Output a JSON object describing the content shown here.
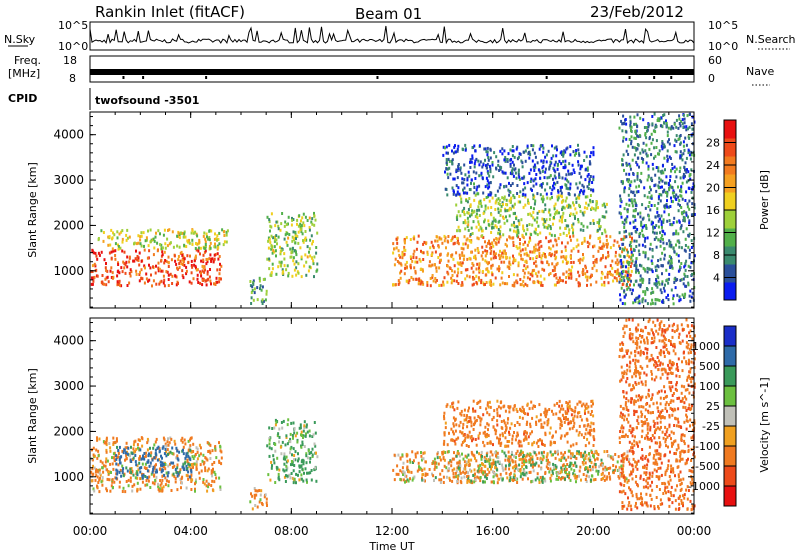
{
  "header": {
    "station": "Rankin Inlet (fitACF)",
    "beam": "Beam 01",
    "date": "23/Feb/2012"
  },
  "top_panels": {
    "nsky_label": "N.Sky",
    "nsearch_label": "N.Search",
    "nsky_ticks": [
      "10^5",
      "10^0"
    ],
    "nsearch_ticks": [
      "10^5",
      "10^0"
    ],
    "freq_label_1": "Freq.",
    "freq_label_2": "[MHz]",
    "freq_ticks": [
      "18",
      "8"
    ],
    "nave_label": "Nave",
    "nave_ticks": [
      "60",
      "0"
    ],
    "cpid_label": "CPID",
    "cpid_value": "twofsound -3501"
  },
  "chart_data": [
    {
      "type": "heatmap",
      "panel": "power",
      "ylabel": "Slant Range [km]",
      "xlabel": "",
      "ylim": [
        180,
        4500
      ],
      "yticks": [
        1000,
        2000,
        3000,
        4000
      ],
      "x_ticks": [
        "00:00",
        "04:00",
        "08:00",
        "12:00",
        "16:00",
        "20:00",
        "00:00"
      ],
      "colorbar": {
        "label": "Power [dB]",
        "ticks": [
          "4",
          "8",
          "12",
          "16",
          "20",
          "24",
          "28"
        ],
        "colors": [
          "#0a1cf0",
          "#2a4f9a",
          "#3a8a6e",
          "#52b04a",
          "#9ed03a",
          "#f0d020",
          "#f5a020",
          "#f27a1e",
          "#ee4a1a",
          "#e81010"
        ]
      },
      "clusters": [
        {
          "t0": 0.0,
          "t1": 5.2,
          "r0": 700,
          "r1": 1500,
          "value": 26
        },
        {
          "t0": 0.3,
          "t1": 5.5,
          "r0": 1500,
          "r1": 1950,
          "value": 16
        },
        {
          "t0": 6.3,
          "t1": 7.0,
          "r0": 300,
          "r1": 900,
          "value": 10
        },
        {
          "t0": 7.0,
          "t1": 9.0,
          "r0": 900,
          "r1": 2300,
          "value": 14
        },
        {
          "t0": 12.0,
          "t1": 21.5,
          "r0": 700,
          "r1": 1800,
          "value": 22
        },
        {
          "t0": 14.5,
          "t1": 20.5,
          "r0": 1800,
          "r1": 2700,
          "value": 14
        },
        {
          "t0": 14.0,
          "t1": 20.0,
          "r0": 2700,
          "r1": 3800,
          "value": 6
        },
        {
          "t0": 21.0,
          "t1": 24.0,
          "r0": 300,
          "r1": 4500,
          "value": 8
        }
      ]
    },
    {
      "type": "heatmap",
      "panel": "velocity",
      "ylabel": "Slant Range [km]",
      "xlabel": "Time UT",
      "ylim": [
        180,
        4500
      ],
      "yticks": [
        1000,
        2000,
        3000,
        4000
      ],
      "x_ticks": [
        "00:00",
        "04:00",
        "08:00",
        "12:00",
        "16:00",
        "20:00",
        "00:00"
      ],
      "colorbar": {
        "label": "Velocity [m s^-1]",
        "ticks": [
          "1000",
          "500",
          "100",
          "25",
          "-25",
          "-100",
          "-500",
          "-1000"
        ],
        "colors": [
          "#1a2ec8",
          "#2e6aa8",
          "#3a9a5a",
          "#6cc040",
          "#c0c0b8",
          "#f0a020",
          "#f07a20",
          "#ee4a1a",
          "#e81010"
        ]
      },
      "clusters": [
        {
          "t0": 0.0,
          "t1": 5.2,
          "r0": 700,
          "r1": 1900,
          "value": -150
        },
        {
          "t0": 1.0,
          "t1": 4.0,
          "r0": 1000,
          "r1": 1700,
          "value": 600
        },
        {
          "t0": 6.3,
          "t1": 7.0,
          "r0": 300,
          "r1": 800,
          "value": -150
        },
        {
          "t0": 7.0,
          "t1": 9.0,
          "r0": 900,
          "r1": 2300,
          "value": 200
        },
        {
          "t0": 12.0,
          "t1": 21.5,
          "r0": 900,
          "r1": 1600,
          "value": -120
        },
        {
          "t0": 14.5,
          "t1": 20.0,
          "r0": 900,
          "r1": 1600,
          "value": 0
        },
        {
          "t0": 14.0,
          "t1": 20.0,
          "r0": 1700,
          "r1": 2700,
          "value": -300
        },
        {
          "t0": 21.0,
          "t1": 24.0,
          "r0": 300,
          "r1": 4500,
          "value": -400
        }
      ]
    }
  ]
}
